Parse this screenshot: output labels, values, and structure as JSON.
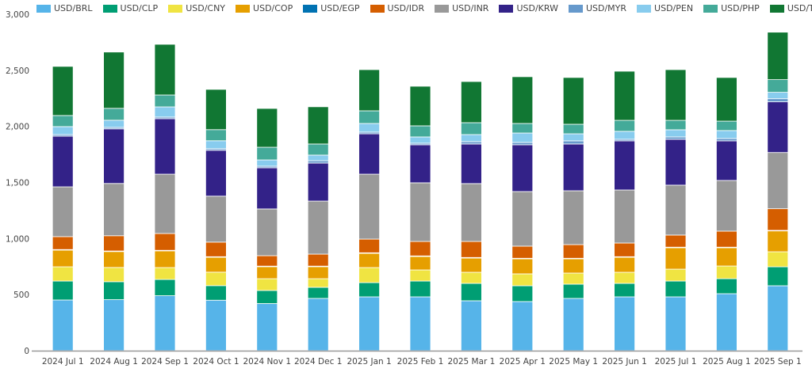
{
  "chart_data": {
    "type": "bar",
    "stacked": true,
    "title": "",
    "xlabel": "",
    "ylabel": "",
    "ylim": [
      0,
      3000
    ],
    "yticks": [
      "0",
      "500",
      "1,000",
      "1,500",
      "2,000",
      "2,500",
      "3,000"
    ],
    "ytick_values": [
      0,
      500,
      1000,
      1500,
      2000,
      2500,
      3000
    ],
    "grid": false,
    "legend_position": "top",
    "categories": [
      "2024 Jul 1",
      "2024 Aug 1",
      "2024 Sep 1",
      "2024 Oct 1",
      "2024 Nov 1",
      "2024 Dec 1",
      "2025 Jan 1",
      "2025 Feb 1",
      "2025 Mar 1",
      "2025 Apr 1",
      "2025 May 1",
      "2025 Jun 1",
      "2025 Jul 1",
      "2025 Aug 1",
      "2025 Sep 1"
    ],
    "series": [
      {
        "name": "USD/BRL",
        "color": "#56b4e9",
        "values": [
          452,
          455,
          490,
          450,
          420,
          466,
          480,
          480,
          445,
          438,
          466,
          480,
          480,
          508,
          579
        ]
      },
      {
        "name": "USD/CLP",
        "color": "#009e73",
        "values": [
          169,
          160,
          145,
          130,
          117,
          99,
          127,
          141,
          155,
          141,
          127,
          120,
          141,
          134,
          169
        ]
      },
      {
        "name": "USD/CNY",
        "color": "#f0e442",
        "values": [
          127,
          127,
          106,
          120,
          105,
          77,
          134,
          99,
          99,
          106,
          99,
          99,
          106,
          113,
          134
        ]
      },
      {
        "name": "USD/COP",
        "color": "#e69f00",
        "values": [
          149,
          142,
          149,
          133,
          107,
          107,
          127,
          120,
          127,
          134,
          127,
          134,
          191,
          163,
          186
        ]
      },
      {
        "name": "USD/EGP",
        "color": "#0072b2",
        "values": [
          5,
          5,
          5,
          5,
          5,
          5,
          5,
          5,
          5,
          5,
          5,
          5,
          5,
          5,
          5
        ]
      },
      {
        "name": "USD/IDR",
        "color": "#d55e00",
        "values": [
          115,
          136,
          150,
          130,
          93,
          107,
          122,
          129,
          143,
          108,
          122,
          122,
          108,
          143,
          193
        ]
      },
      {
        "name": "USD/INR",
        "color": "#999999",
        "values": [
          444,
          466,
          529,
          410,
          417,
          473,
          579,
          523,
          516,
          487,
          480,
          473,
          445,
          452,
          501
        ]
      },
      {
        "name": "USD/KRW",
        "color": "#332288",
        "values": [
          452,
          487,
          495,
          409,
          367,
          339,
          360,
          339,
          353,
          417,
          417,
          438,
          409,
          353,
          452
        ]
      },
      {
        "name": "USD/MYR",
        "color": "#6699cc",
        "values": [
          14,
          13,
          14,
          14,
          14,
          21,
          15,
          14,
          21,
          21,
          28,
          14,
          21,
          21,
          28
        ]
      },
      {
        "name": "USD/PEN",
        "color": "#88ccee",
        "values": [
          71,
          64,
          91,
          71,
          56,
          50,
          77,
          56,
          63,
          84,
          63,
          71,
          64,
          71,
          57
        ]
      },
      {
        "name": "USD/PHP",
        "color": "#44aa99",
        "values": [
          99,
          106,
          106,
          99,
          113,
          99,
          113,
          99,
          106,
          85,
          85,
          98,
          84,
          84,
          113
        ]
      },
      {
        "name": "USD/TWD",
        "color": "#117733",
        "values": [
          438,
          502,
          452,
          359,
          346,
          332,
          367,
          353,
          367,
          417,
          417,
          438,
          452,
          389,
          423
        ]
      }
    ]
  }
}
